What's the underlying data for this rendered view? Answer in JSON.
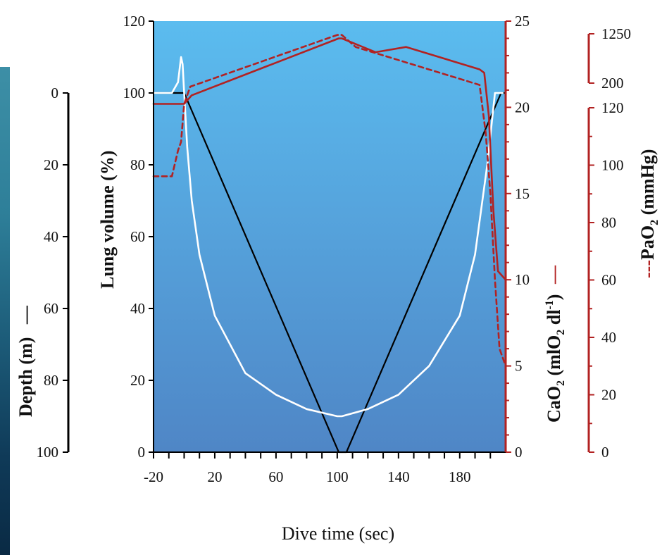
{
  "chart_data": {
    "type": "line",
    "xlabel": "Dive time (sec)",
    "x_ticks": [
      "-20",
      "20",
      "60",
      "100",
      "140",
      "180"
    ],
    "xlim": [
      -20,
      210
    ],
    "axes": {
      "depth": {
        "label_text": "Depth (m)",
        "label_marker": "—",
        "range": [
          0,
          100
        ],
        "inverted": true,
        "ticks": [
          "0",
          "20",
          "40",
          "60",
          "80",
          "100"
        ]
      },
      "lung_volume": {
        "label_text": "Lung volume (%)",
        "range": [
          0,
          120
        ],
        "ticks": [
          "0",
          "20",
          "40",
          "60",
          "80",
          "100",
          "120"
        ]
      },
      "cao2": {
        "label_main": "CaO",
        "label_sub": "2",
        "label_unit_a": " (mlO",
        "label_unit_sub": "2",
        "label_unit_b": " dl",
        "label_unit_sup": "-1",
        "label_unit_c": ")",
        "label_marker": "—",
        "range": [
          0,
          25
        ],
        "ticks": [
          "0",
          "5",
          "10",
          "15",
          "20",
          "25"
        ]
      },
      "pao2": {
        "label_prefix": "---",
        "label_main": "PaO",
        "label_sub": "2",
        "label_unit": " (mmHg)",
        "range": [
          0,
          120
        ],
        "ticks": [
          "0",
          "20",
          "40",
          "60",
          "80",
          "100",
          "120"
        ],
        "break_ticks": [
          "200",
          "1250"
        ]
      }
    },
    "series": [
      {
        "key": "depth",
        "axis": "depth",
        "style": "solid",
        "color": "#000000",
        "x": [
          -20,
          -4,
          -2,
          0,
          101,
          106,
          207,
          210
        ],
        "y": [
          0,
          0,
          0,
          0,
          100,
          100,
          0,
          0
        ]
      },
      {
        "key": "lung_volume",
        "axis": "lung_volume",
        "style": "solid",
        "color": "#ffffff",
        "x": [
          -20,
          -8,
          -4,
          -2,
          -1,
          0,
          2,
          5,
          10,
          20,
          40,
          60,
          80,
          100,
          103,
          120,
          140,
          160,
          180,
          190,
          198,
          203,
          206,
          208
        ],
        "y": [
          100,
          100,
          103,
          110,
          108,
          100,
          85,
          70,
          55,
          38,
          22,
          16,
          12,
          10,
          10,
          12,
          16,
          24,
          38,
          55,
          80,
          100,
          100,
          100
        ]
      },
      {
        "key": "cao2",
        "axis": "cao2",
        "style": "solid",
        "color": "#b22222",
        "x": [
          -20,
          0,
          2,
          5,
          101,
          103,
          125,
          145,
          193,
          196,
          199,
          202,
          205,
          210
        ],
        "y": [
          20.2,
          20.2,
          20.4,
          20.7,
          24.0,
          24.0,
          23.2,
          23.5,
          22.2,
          22.0,
          19.5,
          14.0,
          10.5,
          10.0
        ],
        "series_names": []
      },
      {
        "key": "pao2",
        "axis": "cao2_scale",
        "style": "dashed",
        "color": "#b22222",
        "x": [
          -20,
          -8,
          -4,
          -2,
          0,
          4,
          100,
          103,
          112,
          193,
          197,
          200,
          203,
          206,
          210
        ],
        "y": [
          16.0,
          16.0,
          17.5,
          18.0,
          20.2,
          21.2,
          24.2,
          24.2,
          23.5,
          21.3,
          18.5,
          15.0,
          10.0,
          6.0,
          5.0
        ]
      }
    ],
    "colors": {
      "plot_bg_top": "#5bbcef",
      "plot_bg_bottom": "#4f86c6",
      "red_axis": "#b22222"
    },
    "legend": "none",
    "grid": false
  }
}
